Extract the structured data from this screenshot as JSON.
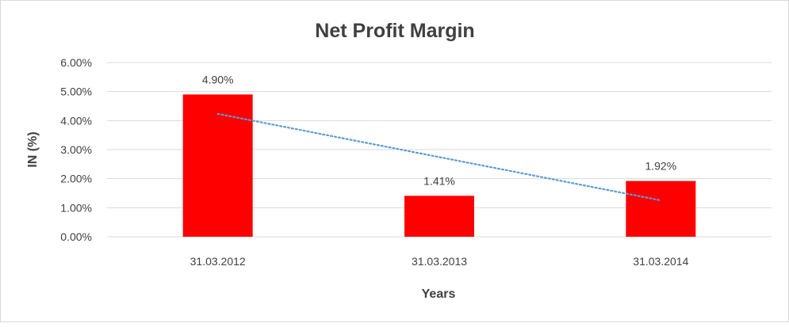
{
  "chart_data": {
    "type": "bar",
    "title": "Net Profit Margin",
    "xlabel": "Years",
    "ylabel": "IN (%)",
    "categories": [
      "31.03.2012",
      "31.03.2013",
      "31.03.2014"
    ],
    "values": [
      4.9,
      1.41,
      1.92
    ],
    "data_labels": [
      "4.90%",
      "1.41%",
      "1.92%"
    ],
    "ylim": [
      0,
      6
    ],
    "yticks": [
      "0.00%",
      "1.00%",
      "2.00%",
      "3.00%",
      "4.00%",
      "5.00%",
      "6.00%"
    ],
    "grid": true,
    "legend": "none",
    "trendline": {
      "type": "linear",
      "style": "dotted",
      "color": "#5b9bd5"
    },
    "bar_color": "#ff0000"
  }
}
